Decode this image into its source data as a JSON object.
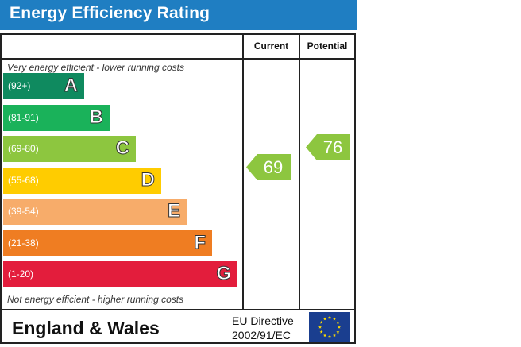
{
  "title": "Energy Efficiency Rating",
  "headers": {
    "current": "Current",
    "potential": "Potential"
  },
  "notes": {
    "top": "Very energy efficient - lower running costs",
    "bottom": "Not energy efficient - higher running costs"
  },
  "footer": {
    "country": "England & Wales",
    "directive_line1": "EU Directive",
    "directive_line2": "2002/91/EC"
  },
  "chart_data": {
    "type": "bar",
    "title": "Energy Efficiency Rating",
    "bands": [
      {
        "range": "(92+)",
        "letter": "A",
        "min": 92,
        "max": 100,
        "color": "#0f8a5f"
      },
      {
        "range": "(81-91)",
        "letter": "B",
        "min": 81,
        "max": 91,
        "color": "#1ab25a"
      },
      {
        "range": "(69-80)",
        "letter": "C",
        "min": 69,
        "max": 80,
        "color": "#8dc63f"
      },
      {
        "range": "(55-68)",
        "letter": "D",
        "min": 55,
        "max": 68,
        "color": "#ffcc00"
      },
      {
        "range": "(39-54)",
        "letter": "E",
        "min": 39,
        "max": 54,
        "color": "#f7ac6a"
      },
      {
        "range": "(21-38)",
        "letter": "F",
        "min": 21,
        "max": 38,
        "color": "#ef7d22"
      },
      {
        "range": "(1-20)",
        "letter": "G",
        "min": 1,
        "max": 20,
        "color": "#e31d3c"
      }
    ],
    "current": {
      "value": 69,
      "band": "C",
      "color": "#8dc63f"
    },
    "potential": {
      "value": 76,
      "band": "C",
      "color": "#8dc63f"
    }
  }
}
